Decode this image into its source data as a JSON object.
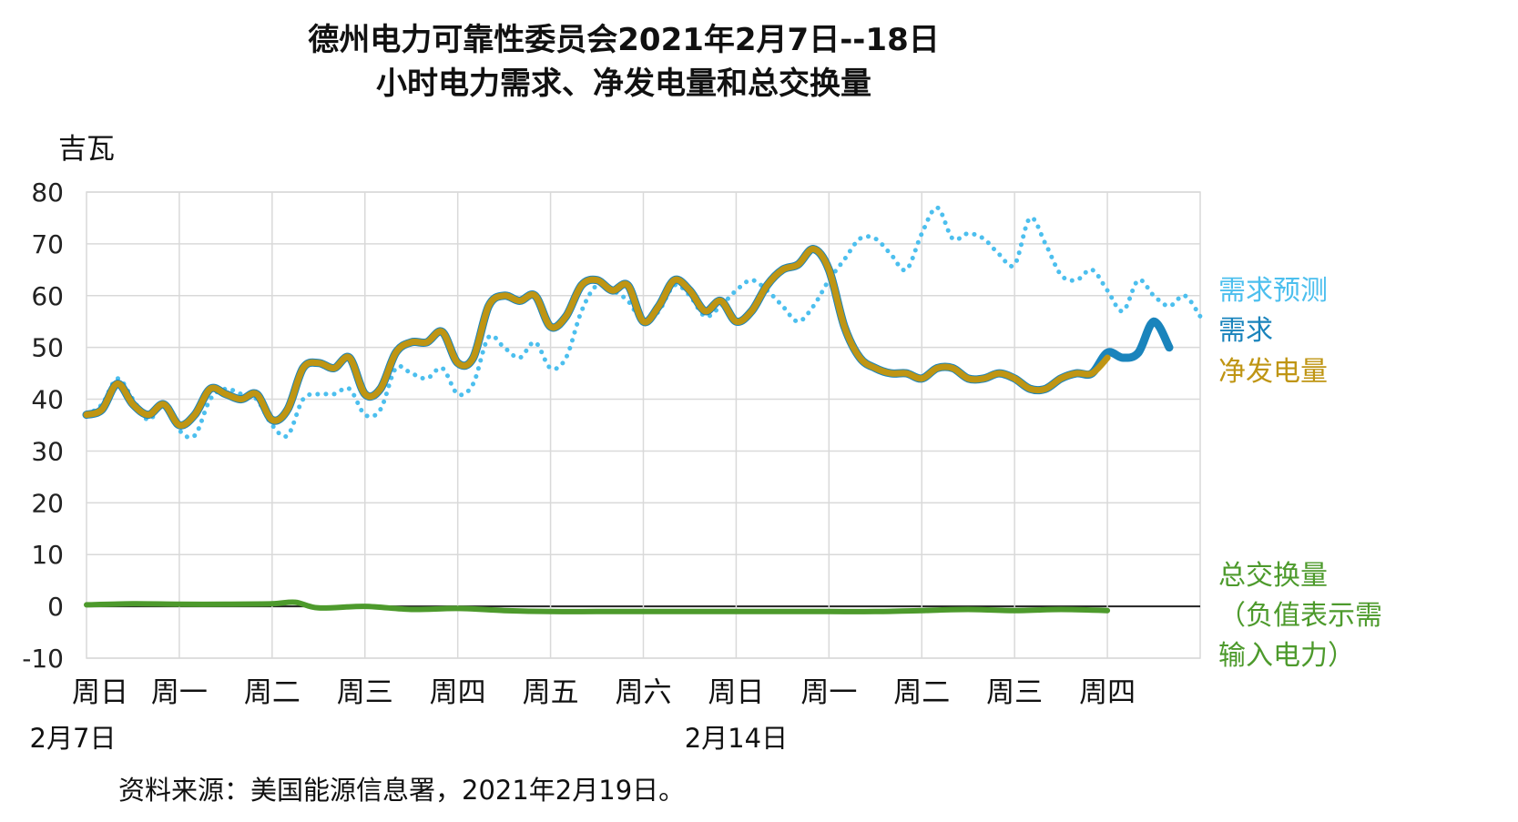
{
  "title_line1": "德州电力可靠性委员会2021年2月7日--18日",
  "title_line2": "小时电力需求、净发电量和总交换量",
  "ylabel": "吉瓦",
  "source": "资料来源：美国能源信息署，2021年2月19日。",
  "legend": {
    "forecast": "需求预测",
    "demand": "需求",
    "netgen": "净发电量",
    "interchange_l1": "总交换量",
    "interchange_l2": "（负值表示需",
    "interchange_l3": "输入电力）"
  },
  "colors": {
    "forecast": "#4cbfee",
    "demand": "#1a84bc",
    "netgen": "#bf9513",
    "interchange": "#4d9a2c",
    "grid": "#d9d9d9"
  },
  "chart_data": {
    "type": "line",
    "y_ticks": [
      "80",
      "70",
      "60",
      "50",
      "40",
      "30",
      "20",
      "10",
      "0",
      "-10"
    ],
    "ylim": [
      -10,
      80
    ],
    "xlim_hours": [
      0,
      288
    ],
    "day_labels": [
      "周日",
      "周一",
      "周二",
      "周三",
      "周四",
      "周五",
      "周六",
      "周日",
      "周一",
      "周二",
      "周三",
      "周四"
    ],
    "date_labels": [
      "2月7日",
      "2月14日"
    ],
    "grid": true,
    "series": [
      {
        "name": "需求预测",
        "style": "dotted",
        "x": [
          0,
          4,
          8,
          12,
          16,
          20,
          24,
          28,
          32,
          36,
          40,
          44,
          48,
          52,
          56,
          60,
          64,
          68,
          72,
          76,
          80,
          84,
          88,
          92,
          96,
          100,
          104,
          108,
          112,
          116,
          120,
          124,
          128,
          132,
          136,
          140,
          144,
          148,
          152,
          156,
          160,
          164,
          168,
          172,
          176,
          180,
          184,
          188,
          192,
          196,
          200,
          204,
          208,
          212,
          216,
          220,
          224,
          228,
          232,
          236,
          240,
          244,
          248,
          252,
          256,
          260,
          264,
          268,
          272,
          276,
          280,
          284,
          288
        ],
        "y": [
          37,
          39,
          44,
          40,
          36,
          39,
          34,
          33,
          40,
          42,
          41,
          40,
          35,
          33,
          40,
          41,
          41,
          42,
          37,
          38,
          46,
          45,
          44,
          46,
          41,
          43,
          52,
          50,
          48,
          51,
          46,
          48,
          57,
          62,
          61,
          59,
          55,
          57,
          62,
          60,
          56,
          58,
          61,
          63,
          61,
          58,
          55,
          58,
          63,
          67,
          71,
          71,
          68,
          65,
          72,
          77,
          71,
          72,
          71,
          68,
          66,
          75,
          70,
          64,
          63,
          65,
          61,
          57,
          63,
          60,
          58,
          60,
          56
        ]
      },
      {
        "name": "需求",
        "style": "solid",
        "x": [
          0,
          4,
          8,
          12,
          16,
          20,
          24,
          28,
          32,
          36,
          40,
          44,
          48,
          52,
          56,
          60,
          64,
          68,
          72,
          76,
          80,
          84,
          88,
          92,
          96,
          100,
          104,
          108,
          112,
          116,
          120,
          124,
          128,
          132,
          136,
          140,
          144,
          148,
          152,
          156,
          160,
          164,
          168,
          172,
          176,
          180,
          184,
          188,
          192,
          196,
          200,
          204,
          208,
          212,
          216,
          220,
          224,
          228,
          232,
          236,
          240,
          244,
          248,
          252,
          256,
          260,
          264,
          268,
          272,
          276,
          280
        ],
        "y": [
          37,
          38,
          43,
          39,
          37,
          39,
          35,
          37,
          42,
          41,
          40,
          41,
          36,
          38,
          46,
          47,
          46,
          48,
          41,
          42,
          49,
          51,
          51,
          53,
          47,
          48,
          58,
          60,
          59,
          60,
          54,
          56,
          62,
          63,
          61,
          62,
          55,
          58,
          63,
          61,
          57,
          59,
          55,
          57,
          62,
          65,
          66,
          69,
          65,
          54,
          48,
          46,
          45,
          45,
          44,
          46,
          46,
          44,
          44,
          45,
          44,
          42,
          42,
          44,
          45,
          45,
          49,
          48,
          49,
          55,
          50
        ]
      },
      {
        "name": "净发电量",
        "style": "solid",
        "x": [
          0,
          4,
          8,
          12,
          16,
          20,
          24,
          28,
          32,
          36,
          40,
          44,
          48,
          52,
          56,
          60,
          64,
          68,
          72,
          76,
          80,
          84,
          88,
          92,
          96,
          100,
          104,
          108,
          112,
          116,
          120,
          124,
          128,
          132,
          136,
          140,
          144,
          148,
          152,
          156,
          160,
          164,
          168,
          172,
          176,
          180,
          184,
          188,
          192,
          196,
          200,
          204,
          208,
          212,
          216,
          220,
          224,
          228,
          232,
          236,
          240,
          244,
          248,
          252,
          256,
          260,
          264
        ],
        "y": [
          37,
          38,
          43,
          39,
          37,
          39,
          35,
          37,
          42,
          41,
          40,
          41,
          36,
          38,
          46,
          47,
          46,
          48,
          41,
          42,
          49,
          51,
          51,
          53,
          47,
          48,
          58,
          60,
          59,
          60,
          54,
          56,
          62,
          63,
          61,
          62,
          55,
          58,
          63,
          61,
          57,
          59,
          55,
          57,
          62,
          65,
          66,
          69,
          65,
          54,
          48,
          46,
          45,
          45,
          44,
          46,
          46,
          44,
          44,
          45,
          44,
          42,
          42,
          44,
          45,
          45,
          48
        ]
      },
      {
        "name": "总交换量",
        "style": "solid",
        "x": [
          0,
          12,
          24,
          36,
          48,
          54,
          60,
          72,
          84,
          96,
          108,
          120,
          132,
          144,
          156,
          168,
          180,
          192,
          204,
          216,
          228,
          240,
          252,
          264
        ],
        "y": [
          0.3,
          0.5,
          0.4,
          0.4,
          0.5,
          0.8,
          -0.3,
          0,
          -0.6,
          -0.4,
          -0.8,
          -1,
          -1,
          -1,
          -1,
          -1,
          -1,
          -1,
          -1,
          -0.8,
          -0.6,
          -0.8,
          -0.6,
          -0.8
        ]
      }
    ]
  }
}
